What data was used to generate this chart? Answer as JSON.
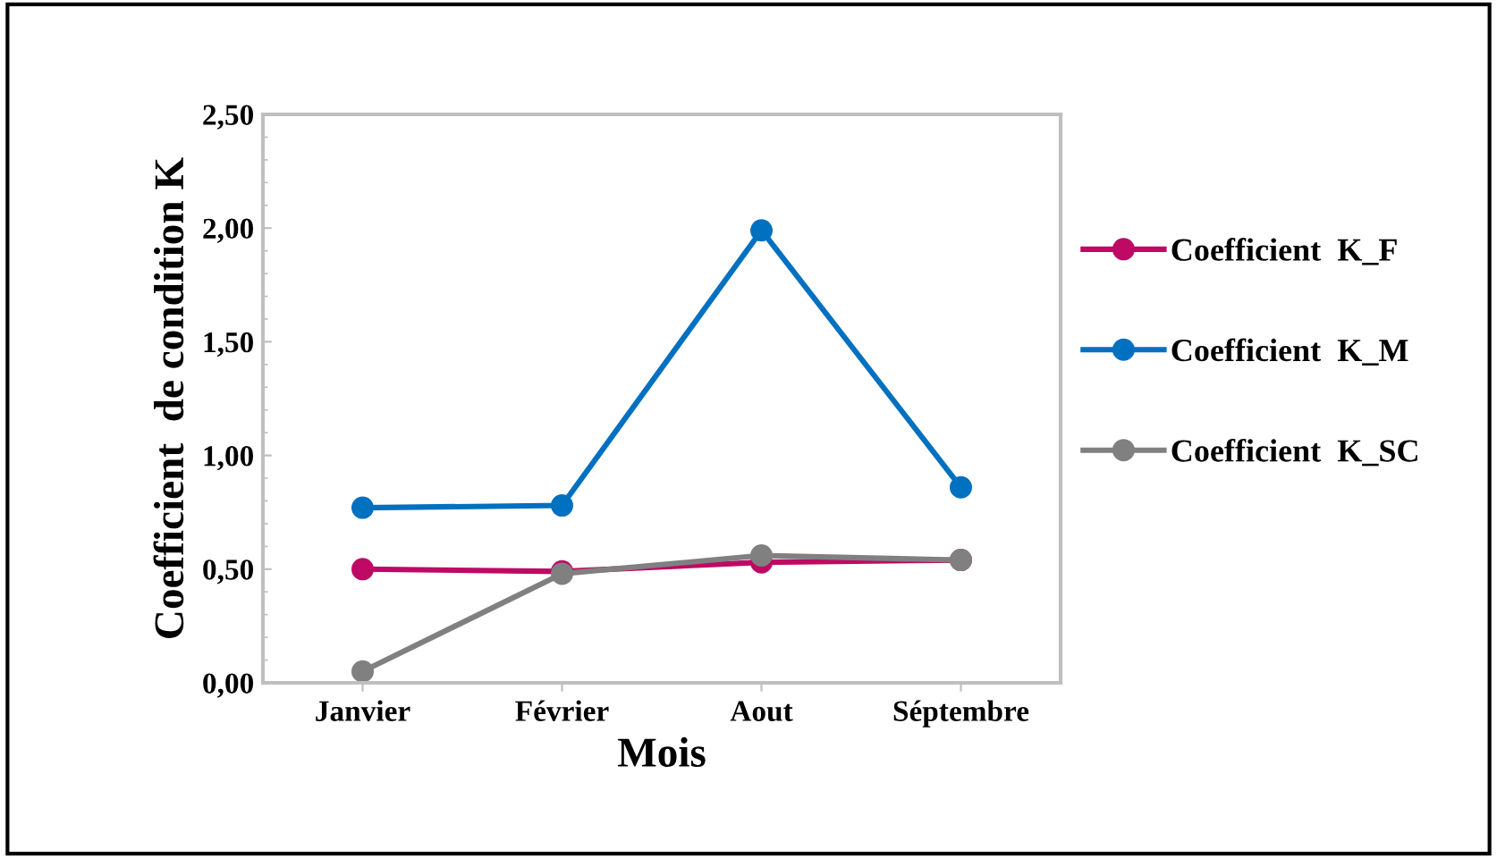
{
  "chart_data": {
    "type": "line",
    "xlabel": "Mois",
    "ylabel": "Coefficient  de condition K",
    "categories": [
      "Janvier",
      "Février",
      "Aout",
      "Séptembre"
    ],
    "series": [
      {
        "name": "Coefficient  K_F",
        "color": "#be0a64",
        "values": [
          0.5,
          0.49,
          0.53,
          0.54
        ]
      },
      {
        "name": "Coefficient  K_M",
        "color": "#0070c0",
        "values": [
          0.77,
          0.78,
          1.99,
          0.86
        ]
      },
      {
        "name": "Coefficient  K_SC",
        "color": "#808080",
        "values": [
          0.05,
          0.48,
          0.56,
          0.54
        ]
      }
    ],
    "ylim": [
      0,
      2.5
    ],
    "yticks": [
      {
        "value": 0,
        "label": "0,00"
      },
      {
        "value": 0.5,
        "label": "0,50"
      },
      {
        "value": 1,
        "label": "1,00"
      },
      {
        "value": 1.5,
        "label": "1,50"
      },
      {
        "value": 2,
        "label": "2,00"
      },
      {
        "value": 2.5,
        "label": "2,50"
      }
    ],
    "grid": false,
    "legend": "right",
    "marker": "circle",
    "line_style": "solid"
  }
}
